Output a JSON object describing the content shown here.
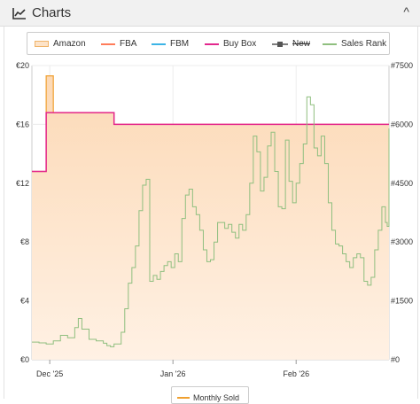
{
  "header": {
    "title": "Charts",
    "chart_icon": "chart-icon",
    "collapse_icon": "chevron-up-icon",
    "collapse_symbol": "^"
  },
  "legend": {
    "items": [
      {
        "label": "Amazon",
        "color": "#f0a030",
        "style": "area"
      },
      {
        "label": "FBA",
        "color": "#ff7c5a",
        "style": "line"
      },
      {
        "label": "FBM",
        "color": "#3cb4e6",
        "style": "line"
      },
      {
        "label": "Buy Box",
        "color": "#e3278d",
        "style": "line"
      },
      {
        "label": "New",
        "color": "#555555",
        "style": "line-marker",
        "hidden": true
      },
      {
        "label": "Sales Rank",
        "color": "#8fbf7f",
        "style": "line"
      }
    ]
  },
  "bottom_legend": {
    "label": "Monthly Sold",
    "color": "#f0a030"
  },
  "chart_data": {
    "type": "line",
    "x_ticks": [
      "Dec '25",
      "Jan '26",
      "Feb '26"
    ],
    "y_left_ticks": [
      "€0",
      "€4",
      "€8",
      "€12",
      "€16",
      "€20"
    ],
    "y_right_ticks": [
      "#0",
      "#1500",
      "#3000",
      "#4500",
      "#6000",
      "#7500"
    ],
    "ylim_left": [
      0,
      20
    ],
    "ylim_right": [
      0,
      7500
    ],
    "grid": true,
    "series": [
      {
        "name": "Amazon",
        "axis": "left",
        "step": true,
        "fill": true,
        "points": [
          [
            0,
            12.8
          ],
          [
            0.04,
            19.3
          ],
          [
            0.06,
            16.8
          ],
          [
            0.23,
            16.0
          ],
          [
            1.0,
            16.0
          ]
        ]
      },
      {
        "name": "Buy Box",
        "axis": "left",
        "step": true,
        "points": [
          [
            0,
            12.8
          ],
          [
            0.04,
            16.8
          ],
          [
            0.23,
            16.0
          ],
          [
            1.0,
            16.0
          ]
        ]
      },
      {
        "name": "Sales Rank",
        "axis": "right",
        "step": true,
        "points": [
          [
            0,
            450
          ],
          [
            0.02,
            430
          ],
          [
            0.04,
            400
          ],
          [
            0.06,
            480
          ],
          [
            0.08,
            620
          ],
          [
            0.1,
            560
          ],
          [
            0.12,
            820
          ],
          [
            0.13,
            1050
          ],
          [
            0.14,
            780
          ],
          [
            0.16,
            520
          ],
          [
            0.18,
            480
          ],
          [
            0.2,
            420
          ],
          [
            0.21,
            360
          ],
          [
            0.22,
            330
          ],
          [
            0.23,
            400
          ],
          [
            0.25,
            700
          ],
          [
            0.26,
            1300
          ],
          [
            0.27,
            1950
          ],
          [
            0.28,
            2350
          ],
          [
            0.29,
            2900
          ],
          [
            0.3,
            3800
          ],
          [
            0.31,
            4450
          ],
          [
            0.32,
            4600
          ],
          [
            0.33,
            2000
          ],
          [
            0.34,
            2150
          ],
          [
            0.35,
            2050
          ],
          [
            0.36,
            2250
          ],
          [
            0.37,
            2400
          ],
          [
            0.38,
            2500
          ],
          [
            0.39,
            2350
          ],
          [
            0.4,
            2700
          ],
          [
            0.41,
            2500
          ],
          [
            0.42,
            3600
          ],
          [
            0.43,
            4200
          ],
          [
            0.44,
            4350
          ],
          [
            0.45,
            3900
          ],
          [
            0.46,
            3700
          ],
          [
            0.47,
            3300
          ],
          [
            0.48,
            2800
          ],
          [
            0.49,
            2500
          ],
          [
            0.5,
            2550
          ],
          [
            0.51,
            3000
          ],
          [
            0.52,
            3500
          ],
          [
            0.53,
            3500
          ],
          [
            0.54,
            3350
          ],
          [
            0.55,
            3450
          ],
          [
            0.56,
            3250
          ],
          [
            0.57,
            3100
          ],
          [
            0.58,
            3450
          ],
          [
            0.59,
            3300
          ],
          [
            0.6,
            3700
          ],
          [
            0.61,
            4500
          ],
          [
            0.62,
            5700
          ],
          [
            0.63,
            5300
          ],
          [
            0.64,
            4300
          ],
          [
            0.65,
            4650
          ],
          [
            0.66,
            5450
          ],
          [
            0.67,
            5800
          ],
          [
            0.68,
            4800
          ],
          [
            0.69,
            3900
          ],
          [
            0.7,
            3850
          ],
          [
            0.71,
            5600
          ],
          [
            0.72,
            4550
          ],
          [
            0.73,
            4000
          ],
          [
            0.74,
            4500
          ],
          [
            0.75,
            5000
          ],
          [
            0.76,
            5500
          ],
          [
            0.77,
            6700
          ],
          [
            0.78,
            6500
          ],
          [
            0.79,
            5400
          ],
          [
            0.8,
            5200
          ],
          [
            0.81,
            5700
          ],
          [
            0.82,
            5000
          ],
          [
            0.83,
            4000
          ],
          [
            0.84,
            3300
          ],
          [
            0.85,
            2950
          ],
          [
            0.86,
            2900
          ],
          [
            0.87,
            2700
          ],
          [
            0.88,
            2500
          ],
          [
            0.89,
            2350
          ],
          [
            0.9,
            2600
          ],
          [
            0.91,
            2700
          ],
          [
            0.92,
            2600
          ],
          [
            0.93,
            2000
          ],
          [
            0.94,
            1900
          ],
          [
            0.95,
            2100
          ],
          [
            0.96,
            2800
          ],
          [
            0.97,
            3300
          ],
          [
            0.98,
            3900
          ],
          [
            0.99,
            3500
          ],
          [
            0.995,
            3400
          ],
          [
            1.0,
            5900
          ]
        ]
      }
    ]
  }
}
